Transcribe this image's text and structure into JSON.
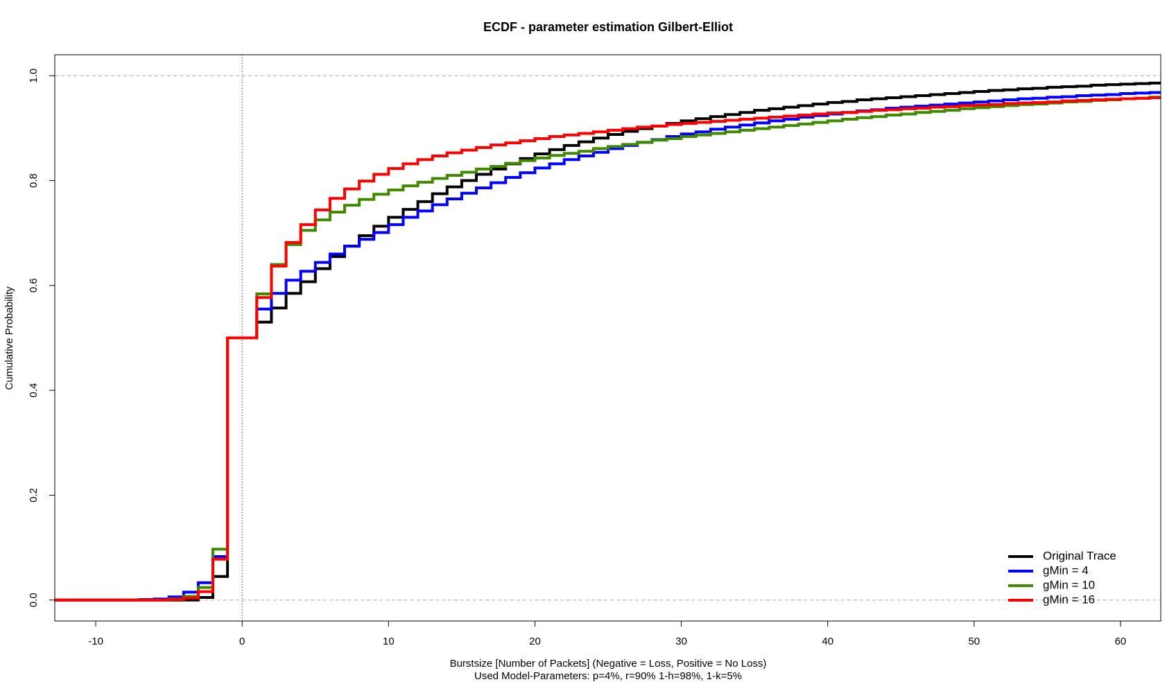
{
  "chart_data": {
    "type": "step",
    "title": "ECDF - parameter estimation Gilbert-Elliot",
    "xlabel": "Burstsize [Number of Packets] (Negative = Loss, Positive = No Loss)",
    "caption": "Used Model-Parameters: p=4%, r=90% 1-h=98%, 1-k=5%",
    "ylabel": "Cumulative Probability",
    "xlim": [
      -12.8,
      62.75
    ],
    "ylim": [
      -0.04,
      1.04
    ],
    "xticks": [
      -10,
      0,
      10,
      20,
      30,
      40,
      50,
      60
    ],
    "yticks": [
      {
        "value": 0,
        "label": "0.0"
      },
      0.2,
      0.4,
      0.6,
      0.8,
      {
        "value": 1,
        "label": "1.0"
      }
    ],
    "hlines": [
      0,
      1
    ],
    "vlines": [
      0
    ],
    "legend": "bottomright",
    "x": [
      -8,
      -7,
      -6,
      -5,
      -4,
      -3,
      -2,
      -1,
      0,
      1,
      2,
      3,
      4,
      5,
      6,
      7,
      8,
      9,
      10,
      11,
      12,
      13,
      14,
      15,
      16,
      17,
      18,
      19,
      20,
      21,
      22,
      23,
      24,
      25,
      26,
      27,
      28,
      29,
      30,
      31,
      32,
      33,
      34,
      35,
      36,
      37,
      38,
      39,
      40,
      41,
      42,
      43,
      44,
      45,
      46,
      47,
      48,
      49,
      50,
      51,
      52,
      53,
      54,
      55,
      56,
      57,
      58,
      59,
      60,
      61,
      62
    ],
    "series": [
      {
        "name": "Original Trace",
        "color": "#000000",
        "values": [
          0,
          0,
          0,
          0,
          0,
          0.005,
          0.045,
          0.5,
          0.5,
          0.53,
          0.557,
          0.585,
          0.607,
          0.632,
          0.655,
          0.675,
          0.695,
          0.713,
          0.73,
          0.745,
          0.76,
          0.775,
          0.788,
          0.8,
          0.812,
          0.822,
          0.832,
          0.842,
          0.851,
          0.859,
          0.867,
          0.874,
          0.881,
          0.888,
          0.894,
          0.899,
          0.904,
          0.909,
          0.914,
          0.918,
          0.922,
          0.926,
          0.93,
          0.934,
          0.937,
          0.94,
          0.943,
          0.946,
          0.949,
          0.951,
          0.954,
          0.956,
          0.958,
          0.96,
          0.962,
          0.964,
          0.966,
          0.968,
          0.97,
          0.972,
          0.973,
          0.975,
          0.976,
          0.978,
          0.979,
          0.98,
          0.982,
          0.983,
          0.984,
          0.985,
          0.986
        ]
      },
      {
        "name": "gMin = 4",
        "color": "#0000ff",
        "values": [
          0,
          0.001,
          0.002,
          0.006,
          0.015,
          0.033,
          0.083,
          0.5,
          0.5,
          0.555,
          0.585,
          0.61,
          0.627,
          0.644,
          0.66,
          0.675,
          0.688,
          0.701,
          0.716,
          0.73,
          0.742,
          0.754,
          0.765,
          0.776,
          0.786,
          0.796,
          0.806,
          0.815,
          0.824,
          0.832,
          0.84,
          0.847,
          0.854,
          0.861,
          0.867,
          0.873,
          0.878,
          0.884,
          0.889,
          0.893,
          0.898,
          0.902,
          0.906,
          0.91,
          0.914,
          0.917,
          0.921,
          0.924,
          0.927,
          0.93,
          0.933,
          0.935,
          0.938,
          0.94,
          0.942,
          0.944,
          0.946,
          0.948,
          0.95,
          0.952,
          0.954,
          0.956,
          0.957,
          0.959,
          0.96,
          0.962,
          0.963,
          0.964,
          0.966,
          0.967,
          0.968
        ]
      },
      {
        "name": "gMin = 10",
        "color": "#3f8a00",
        "values": [
          0,
          0,
          0,
          0.002,
          0.007,
          0.024,
          0.097,
          0.5,
          0.5,
          0.584,
          0.64,
          0.678,
          0.705,
          0.725,
          0.74,
          0.753,
          0.764,
          0.774,
          0.782,
          0.79,
          0.797,
          0.804,
          0.81,
          0.816,
          0.822,
          0.827,
          0.833,
          0.838,
          0.843,
          0.848,
          0.852,
          0.856,
          0.861,
          0.865,
          0.869,
          0.873,
          0.877,
          0.88,
          0.884,
          0.887,
          0.89,
          0.893,
          0.896,
          0.899,
          0.902,
          0.905,
          0.908,
          0.911,
          0.914,
          0.917,
          0.92,
          0.922,
          0.925,
          0.927,
          0.93,
          0.932,
          0.934,
          0.937,
          0.939,
          0.941,
          0.943,
          0.945,
          0.946,
          0.948,
          0.95,
          0.951,
          0.953,
          0.954,
          0.956,
          0.957,
          0.959
        ]
      },
      {
        "name": "gMin = 16",
        "color": "#ff0000",
        "values": [
          0,
          0,
          0,
          0.001,
          0.004,
          0.016,
          0.078,
          0.5,
          0.5,
          0.577,
          0.637,
          0.682,
          0.716,
          0.744,
          0.766,
          0.784,
          0.799,
          0.812,
          0.823,
          0.832,
          0.84,
          0.847,
          0.853,
          0.858,
          0.863,
          0.868,
          0.872,
          0.876,
          0.88,
          0.884,
          0.887,
          0.89,
          0.893,
          0.896,
          0.899,
          0.902,
          0.904,
          0.907,
          0.909,
          0.911,
          0.913,
          0.915,
          0.917,
          0.919,
          0.921,
          0.923,
          0.925,
          0.927,
          0.929,
          0.93,
          0.932,
          0.934,
          0.935,
          0.937,
          0.938,
          0.94,
          0.941,
          0.943,
          0.944,
          0.945,
          0.947,
          0.948,
          0.949,
          0.95,
          0.952,
          0.953,
          0.954,
          0.955,
          0.956,
          0.957,
          0.958
        ]
      }
    ]
  }
}
